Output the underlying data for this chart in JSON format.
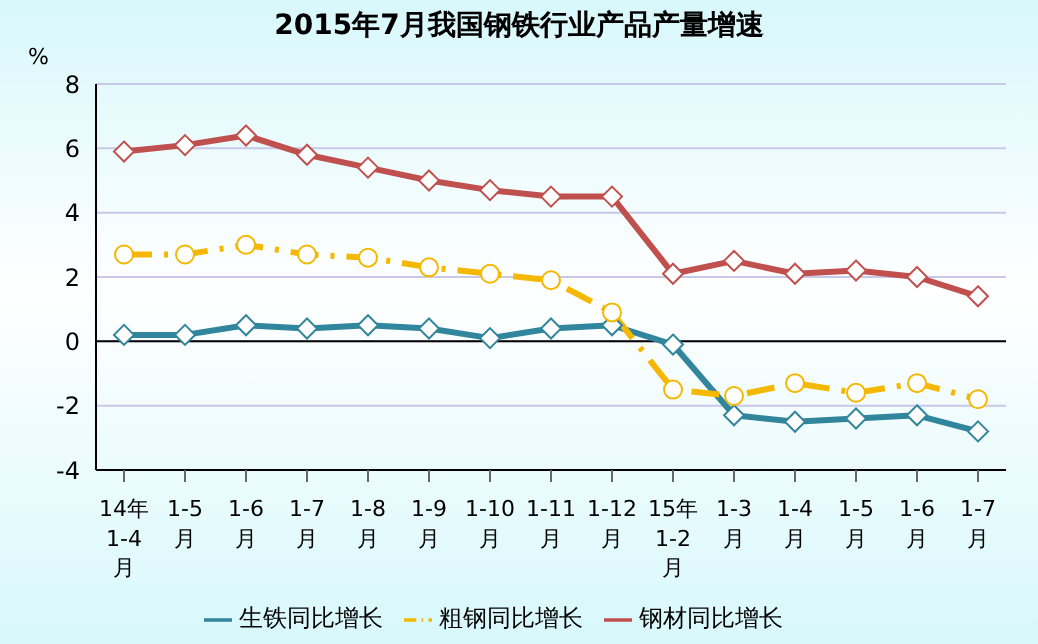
{
  "chart_data": {
    "type": "line",
    "title": "2015年7月我国钢铁行业产品产量增速",
    "ylabel": "%",
    "categories": [
      "14年1-4月",
      "1-5月",
      "1-6月",
      "1-7月",
      "1-8月",
      "1-9月",
      "1-10月",
      "1-11月",
      "1-12月",
      "15年1-2月",
      "1-3月",
      "1-4月",
      "1-5月",
      "1-6月",
      "1-7月"
    ],
    "series": [
      {
        "name": "生铁同比增长",
        "color": "#31859c",
        "marker": "diamond",
        "line_style": "solid",
        "values": [
          0.2,
          0.2,
          0.5,
          0.4,
          0.5,
          0.4,
          0.1,
          0.4,
          0.5,
          -0.1,
          -2.3,
          -2.5,
          -2.4,
          -2.3,
          -2.8
        ]
      },
      {
        "name": "粗钢同比增长",
        "color": "#f5b800",
        "marker": "circle",
        "line_style": "dashed",
        "values": [
          2.7,
          2.7,
          3.0,
          2.7,
          2.6,
          2.3,
          2.1,
          1.9,
          0.9,
          -1.5,
          -1.7,
          -1.3,
          -1.6,
          -1.3,
          -1.8
        ]
      },
      {
        "name": "钢材同比增长",
        "color": "#c0504d",
        "marker": "diamond",
        "line_style": "solid",
        "values": [
          5.9,
          6.1,
          6.4,
          5.8,
          5.4,
          5.0,
          4.7,
          4.5,
          4.5,
          2.1,
          2.5,
          2.1,
          2.2,
          2.0,
          1.4
        ]
      }
    ],
    "ylim": [
      -4,
      8
    ],
    "yticks": [
      -4,
      -2,
      0,
      2,
      4,
      6,
      8
    ],
    "grid": "y",
    "legend": "bottom"
  }
}
